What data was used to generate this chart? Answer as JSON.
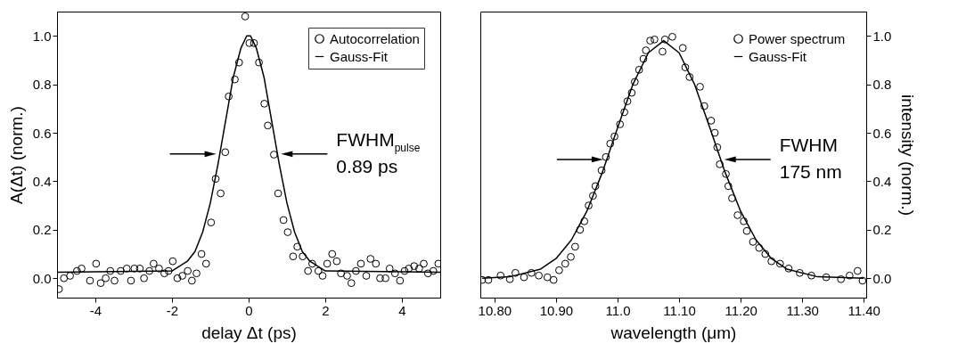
{
  "chart_data": [
    {
      "type": "scatter",
      "xlabel": "delay Δt (ps)",
      "ylabel": "A(Δt) (norm.)",
      "xlim": [
        -5,
        5
      ],
      "xticks": [
        -4,
        -2,
        0,
        2,
        4
      ],
      "ylim": [
        -0.08,
        1.1
      ],
      "yticks": [
        {
          "value": 0,
          "label": "0.0"
        },
        0.2,
        0.4,
        0.6,
        0.8,
        {
          "value": 1,
          "label": "1.0"
        }
      ],
      "grid": false,
      "legend": "top right",
      "annotations": [
        "FWHM$_{pulse}$",
        "0.89 ps"
      ],
      "series": [
        {
          "name": "Autocorrelation",
          "type": "scatter",
          "marker": "circle",
          "color": "#000000",
          "x": [
            -4.95,
            -4.82,
            -4.66,
            -4.48,
            -4.36,
            -4.14,
            -3.98,
            -3.86,
            -3.73,
            -3.61,
            -3.5,
            -3.34,
            -3.18,
            -3.07,
            -2.98,
            -2.84,
            -2.73,
            -2.59,
            -2.48,
            -2.34,
            -2.2,
            -2.09,
            -1.98,
            -1.86,
            -1.73,
            -1.59,
            -1.48,
            -1.36,
            -1.23,
            -1.11,
            -0.98,
            -0.86,
            -0.73,
            -0.61,
            -0.52,
            -0.36,
            -0.25,
            -0.09,
            0.02,
            0.14,
            0.27,
            0.41,
            0.5,
            0.66,
            0.77,
            0.91,
            1.02,
            1.16,
            1.27,
            1.41,
            1.55,
            1.66,
            1.82,
            1.93,
            2.05,
            2.18,
            2.3,
            2.41,
            2.57,
            2.68,
            2.8,
            2.93,
            3.07,
            3.18,
            3.32,
            3.43,
            3.57,
            3.68,
            3.82,
            3.95,
            4.07,
            4.18,
            4.32,
            4.45,
            4.57,
            4.68,
            4.82,
            4.95
          ],
          "values": [
            -0.045,
            0.0,
            0.01,
            0.03,
            0.04,
            -0.01,
            0.06,
            -0.02,
            0.0,
            0.03,
            -0.01,
            0.03,
            0.04,
            -0.01,
            0.04,
            0.04,
            0.0,
            0.03,
            0.06,
            0.04,
            0.02,
            0.03,
            0.07,
            0.0,
            0.01,
            0.03,
            -0.01,
            0.02,
            0.1,
            0.06,
            0.23,
            0.41,
            0.35,
            0.52,
            0.75,
            0.82,
            0.89,
            1.08,
            0.97,
            0.97,
            0.89,
            0.72,
            0.63,
            0.51,
            0.35,
            0.24,
            0.19,
            0.09,
            0.13,
            0.09,
            0.03,
            0.06,
            0.03,
            0.01,
            0.06,
            0.1,
            0.07,
            0.02,
            0.01,
            -0.02,
            0.03,
            0.06,
            0.01,
            0.08,
            0.06,
            0.0,
            0.0,
            0.04,
            0.02,
            -0.01,
            0.03,
            0.04,
            0.05,
            0.04,
            0.06,
            0.02,
            0.03,
            0.06
          ]
        },
        {
          "name": "Gauss-Fit",
          "type": "line",
          "marker": "none",
          "color": "#000000",
          "x": [
            -5,
            -2,
            -1.6,
            -1.4,
            -1.2,
            -1,
            -0.8,
            -0.6,
            -0.4,
            -0.2,
            -0.05,
            0.05,
            0.2,
            0.4,
            0.6,
            0.8,
            1,
            1.2,
            1.4,
            1.6,
            2,
            5
          ],
          "values": [
            0.025,
            0.03,
            0.07,
            0.11,
            0.19,
            0.31,
            0.47,
            0.65,
            0.83,
            0.95,
            1.0,
            1.0,
            0.95,
            0.83,
            0.65,
            0.47,
            0.31,
            0.19,
            0.11,
            0.07,
            0.03,
            0.025
          ]
        }
      ]
    },
    {
      "type": "scatter",
      "xlabel": "wavelength (μm)",
      "y2label": "intensity (norm.)",
      "xlim": [
        10.777,
        11.404
      ],
      "xticks": [
        {
          "value": 10.8,
          "label": "10.80"
        },
        {
          "value": 10.9,
          "label": "10.90"
        },
        {
          "value": 11,
          "label": "11.0"
        },
        {
          "value": 11.1,
          "label": "11.10"
        },
        {
          "value": 11.2,
          "label": "11.20"
        },
        {
          "value": 11.3,
          "label": "11.30"
        },
        {
          "value": 11.4,
          "label": "11.40"
        }
      ],
      "y2lim": [
        -0.08,
        1.1
      ],
      "y2ticks": [
        {
          "value": 0,
          "label": "0.0"
        },
        0.2,
        0.4,
        0.6,
        0.8,
        {
          "value": 1,
          "label": "1.0"
        }
      ],
      "grid": false,
      "legend": "top right",
      "annotations": [
        "FWHM",
        "175 nm"
      ],
      "series": [
        {
          "name": "Power spectrum",
          "type": "scatter",
          "marker": "circle",
          "axis": "y2",
          "color": "#000000",
          "x": [
            10.78,
            10.79,
            10.81,
            10.825,
            10.834,
            10.848,
            10.86,
            10.872,
            10.886,
            10.896,
            10.905,
            10.915,
            10.924,
            10.931,
            10.939,
            10.946,
            10.953,
            10.96,
            10.964,
            10.974,
            10.981,
            10.988,
            10.995,
            11.004,
            11.011,
            11.016,
            11.023,
            11.028,
            11.035,
            11.042,
            11.046,
            11.053,
            11.06,
            11.073,
            11.077,
            11.089,
            11.106,
            11.11,
            11.117,
            11.134,
            11.141,
            11.152,
            11.158,
            11.162,
            11.166,
            11.176,
            11.18,
            11.186,
            11.195,
            11.205,
            11.21,
            11.22,
            11.23,
            11.24,
            11.25,
            11.264,
            11.278,
            11.296,
            11.315,
            11.339,
            11.363,
            11.377,
            11.39,
            11.398
          ],
          "values": [
            -0.007,
            -0.007,
            0.011,
            -0.004,
            0.022,
            0.004,
            0.022,
            0.011,
            0.004,
            -0.007,
            0.033,
            0.06,
            0.088,
            0.13,
            0.2,
            0.235,
            0.3,
            0.34,
            0.38,
            0.445,
            0.5,
            0.555,
            0.585,
            0.635,
            0.685,
            0.73,
            0.765,
            0.81,
            0.86,
            0.905,
            0.94,
            0.98,
            0.985,
            0.935,
            0.985,
            0.996,
            0.95,
            0.87,
            0.83,
            0.79,
            0.71,
            0.65,
            0.6,
            0.54,
            0.47,
            0.43,
            0.38,
            0.33,
            0.26,
            0.235,
            0.195,
            0.15,
            0.125,
            0.1,
            0.07,
            0.06,
            0.04,
            0.022,
            0.011,
            0.004,
            -0.004,
            0.011,
            0.03,
            -0.01
          ]
        },
        {
          "name": "Gauss-Fit",
          "type": "line",
          "marker": "none",
          "axis": "y2",
          "color": "#000000",
          "x": [
            10.78,
            10.825,
            10.875,
            10.9,
            10.925,
            10.95,
            10.975,
            11.0,
            11.025,
            11.05,
            11.075,
            11.1,
            11.125,
            11.15,
            11.175,
            11.2,
            11.225,
            11.25,
            11.275,
            11.325,
            11.4
          ],
          "values": [
            0,
            0.006,
            0.038,
            0.081,
            0.158,
            0.276,
            0.435,
            0.62,
            0.8,
            0.93,
            0.98,
            0.93,
            0.8,
            0.62,
            0.435,
            0.276,
            0.158,
            0.081,
            0.038,
            0.006,
            0
          ]
        }
      ]
    }
  ]
}
